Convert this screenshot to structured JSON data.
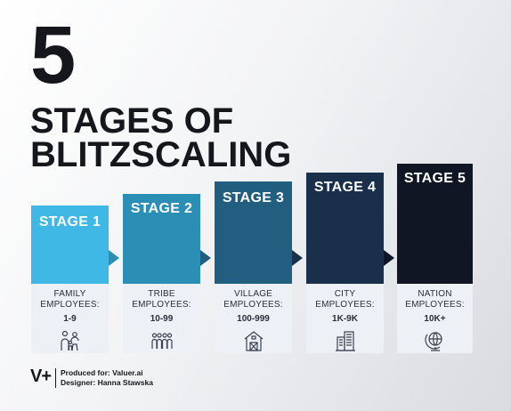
{
  "heading": {
    "number": "5",
    "line1": "STAGES OF",
    "line2": "BLITZSCALING"
  },
  "stages": [
    {
      "label": "STAGE 1",
      "type": "FAMILY",
      "employees_label": "EMPLOYEES:",
      "range": "1-9",
      "color": "#3fb8e6",
      "icon": "family-icon"
    },
    {
      "label": "STAGE 2",
      "type": "TRIBE",
      "employees_label": "EMPLOYEES:",
      "range": "10-99",
      "color": "#2b8fb5",
      "icon": "group-icon"
    },
    {
      "label": "STAGE 3",
      "type": "VILLAGE",
      "employees_label": "EMPLOYEES:",
      "range": "100-999",
      "color": "#215e80",
      "icon": "barn-icon"
    },
    {
      "label": "STAGE 4",
      "type": "CITY",
      "employees_label": "EMPLOYEES:",
      "range": "1K-9K",
      "color": "#1a2f4a",
      "icon": "buildings-icon"
    },
    {
      "label": "STAGE 5",
      "type": "NATION",
      "employees_label": "EMPLOYEES:",
      "range": "10K+",
      "color": "#101624",
      "icon": "globe-icon"
    }
  ],
  "footer": {
    "logo": "V+",
    "produced": "Produced for: Valuer.ai",
    "designer": "Designer: Hanna Stawska"
  }
}
